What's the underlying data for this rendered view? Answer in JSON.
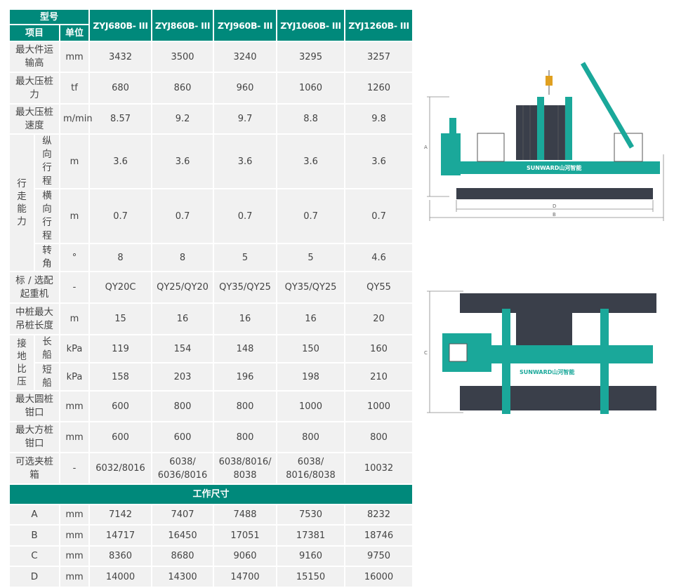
{
  "header": {
    "model_label": "型号",
    "item_label": "项目",
    "unit_label": "单位",
    "models": [
      "ZYJ680B- III",
      "ZYJ860B- III",
      "ZYJ960B- III",
      "ZYJ1060B- III",
      "ZYJ1260B- III"
    ]
  },
  "rows": [
    {
      "label": "最大件运输高",
      "unit": "mm",
      "values": [
        "3432",
        "3500",
        "3240",
        "3295",
        "3257"
      ]
    },
    {
      "label": "最大压桩力",
      "unit": "tf",
      "values": [
        "680",
        "860",
        "960",
        "1060",
        "1260"
      ]
    },
    {
      "label": "最大压桩速度",
      "unit": "m/min",
      "values": [
        "8.57",
        "9.2",
        "9.7",
        "8.8",
        "9.8"
      ]
    }
  ],
  "travel": {
    "group_label": "行走能力",
    "rows": [
      {
        "label": "纵向行程",
        "unit": "m",
        "values": [
          "3.6",
          "3.6",
          "3.6",
          "3.6",
          "3.6"
        ]
      },
      {
        "label": "横向行程",
        "unit": "m",
        "values": [
          "0.7",
          "0.7",
          "0.7",
          "0.7",
          "0.7"
        ]
      },
      {
        "label": "转角",
        "unit": "°",
        "values": [
          "8",
          "8",
          "5",
          "5",
          "4.6"
        ]
      }
    ]
  },
  "rows2": [
    {
      "label": "标 / 选配起重机",
      "unit": "-",
      "values": [
        "QY20C",
        "QY25/QY20",
        "QY35/QY25",
        "QY35/QY25",
        "QY55"
      ]
    },
    {
      "label": "中桩最大吊桩长度",
      "unit": "m",
      "values": [
        "15",
        "16",
        "16",
        "16",
        "20"
      ]
    }
  ],
  "pressure": {
    "group_label": "接地比压",
    "rows": [
      {
        "label": "长船",
        "unit": "kPa",
        "values": [
          "119",
          "154",
          "148",
          "150",
          "160"
        ]
      },
      {
        "label": "短船",
        "unit": "kPa",
        "values": [
          "158",
          "203",
          "196",
          "198",
          "210"
        ]
      }
    ]
  },
  "rows3": [
    {
      "label": "最大圆桩钳口",
      "unit": "mm",
      "values": [
        "600",
        "800",
        "800",
        "1000",
        "1000"
      ]
    },
    {
      "label": "最大方桩钳口",
      "unit": "mm",
      "values": [
        "600",
        "600",
        "800",
        "800",
        "800"
      ]
    },
    {
      "label": "可选夹桩箱",
      "unit": "-",
      "values": [
        "6032/8016",
        "6038/ 6036/8016",
        "6038/8016/ 8038",
        "6038/ 8016/8038",
        "10032"
      ]
    }
  ],
  "dims": {
    "title": "工作尺寸",
    "rows": [
      {
        "label": "A",
        "unit": "mm",
        "values": [
          "7142",
          "7407",
          "7488",
          "7530",
          "8232"
        ]
      },
      {
        "label": "B",
        "unit": "mm",
        "values": [
          "14717",
          "16450",
          "17051",
          "17381",
          "18746"
        ]
      },
      {
        "label": "C",
        "unit": "mm",
        "values": [
          "8360",
          "8680",
          "9060",
          "9160",
          "9750"
        ]
      },
      {
        "label": "D",
        "unit": "mm",
        "values": [
          "14000",
          "14300",
          "14700",
          "15150",
          "16000"
        ]
      }
    ]
  },
  "diagram": {
    "brand": "SUNWARD山河智能",
    "dim_labels": [
      "A",
      "B",
      "C",
      "D"
    ]
  },
  "colors": {
    "teal": "#00897b",
    "cell": "#f1f1f1",
    "machine": "#1aa89a",
    "dark": "#3a3f4a"
  }
}
